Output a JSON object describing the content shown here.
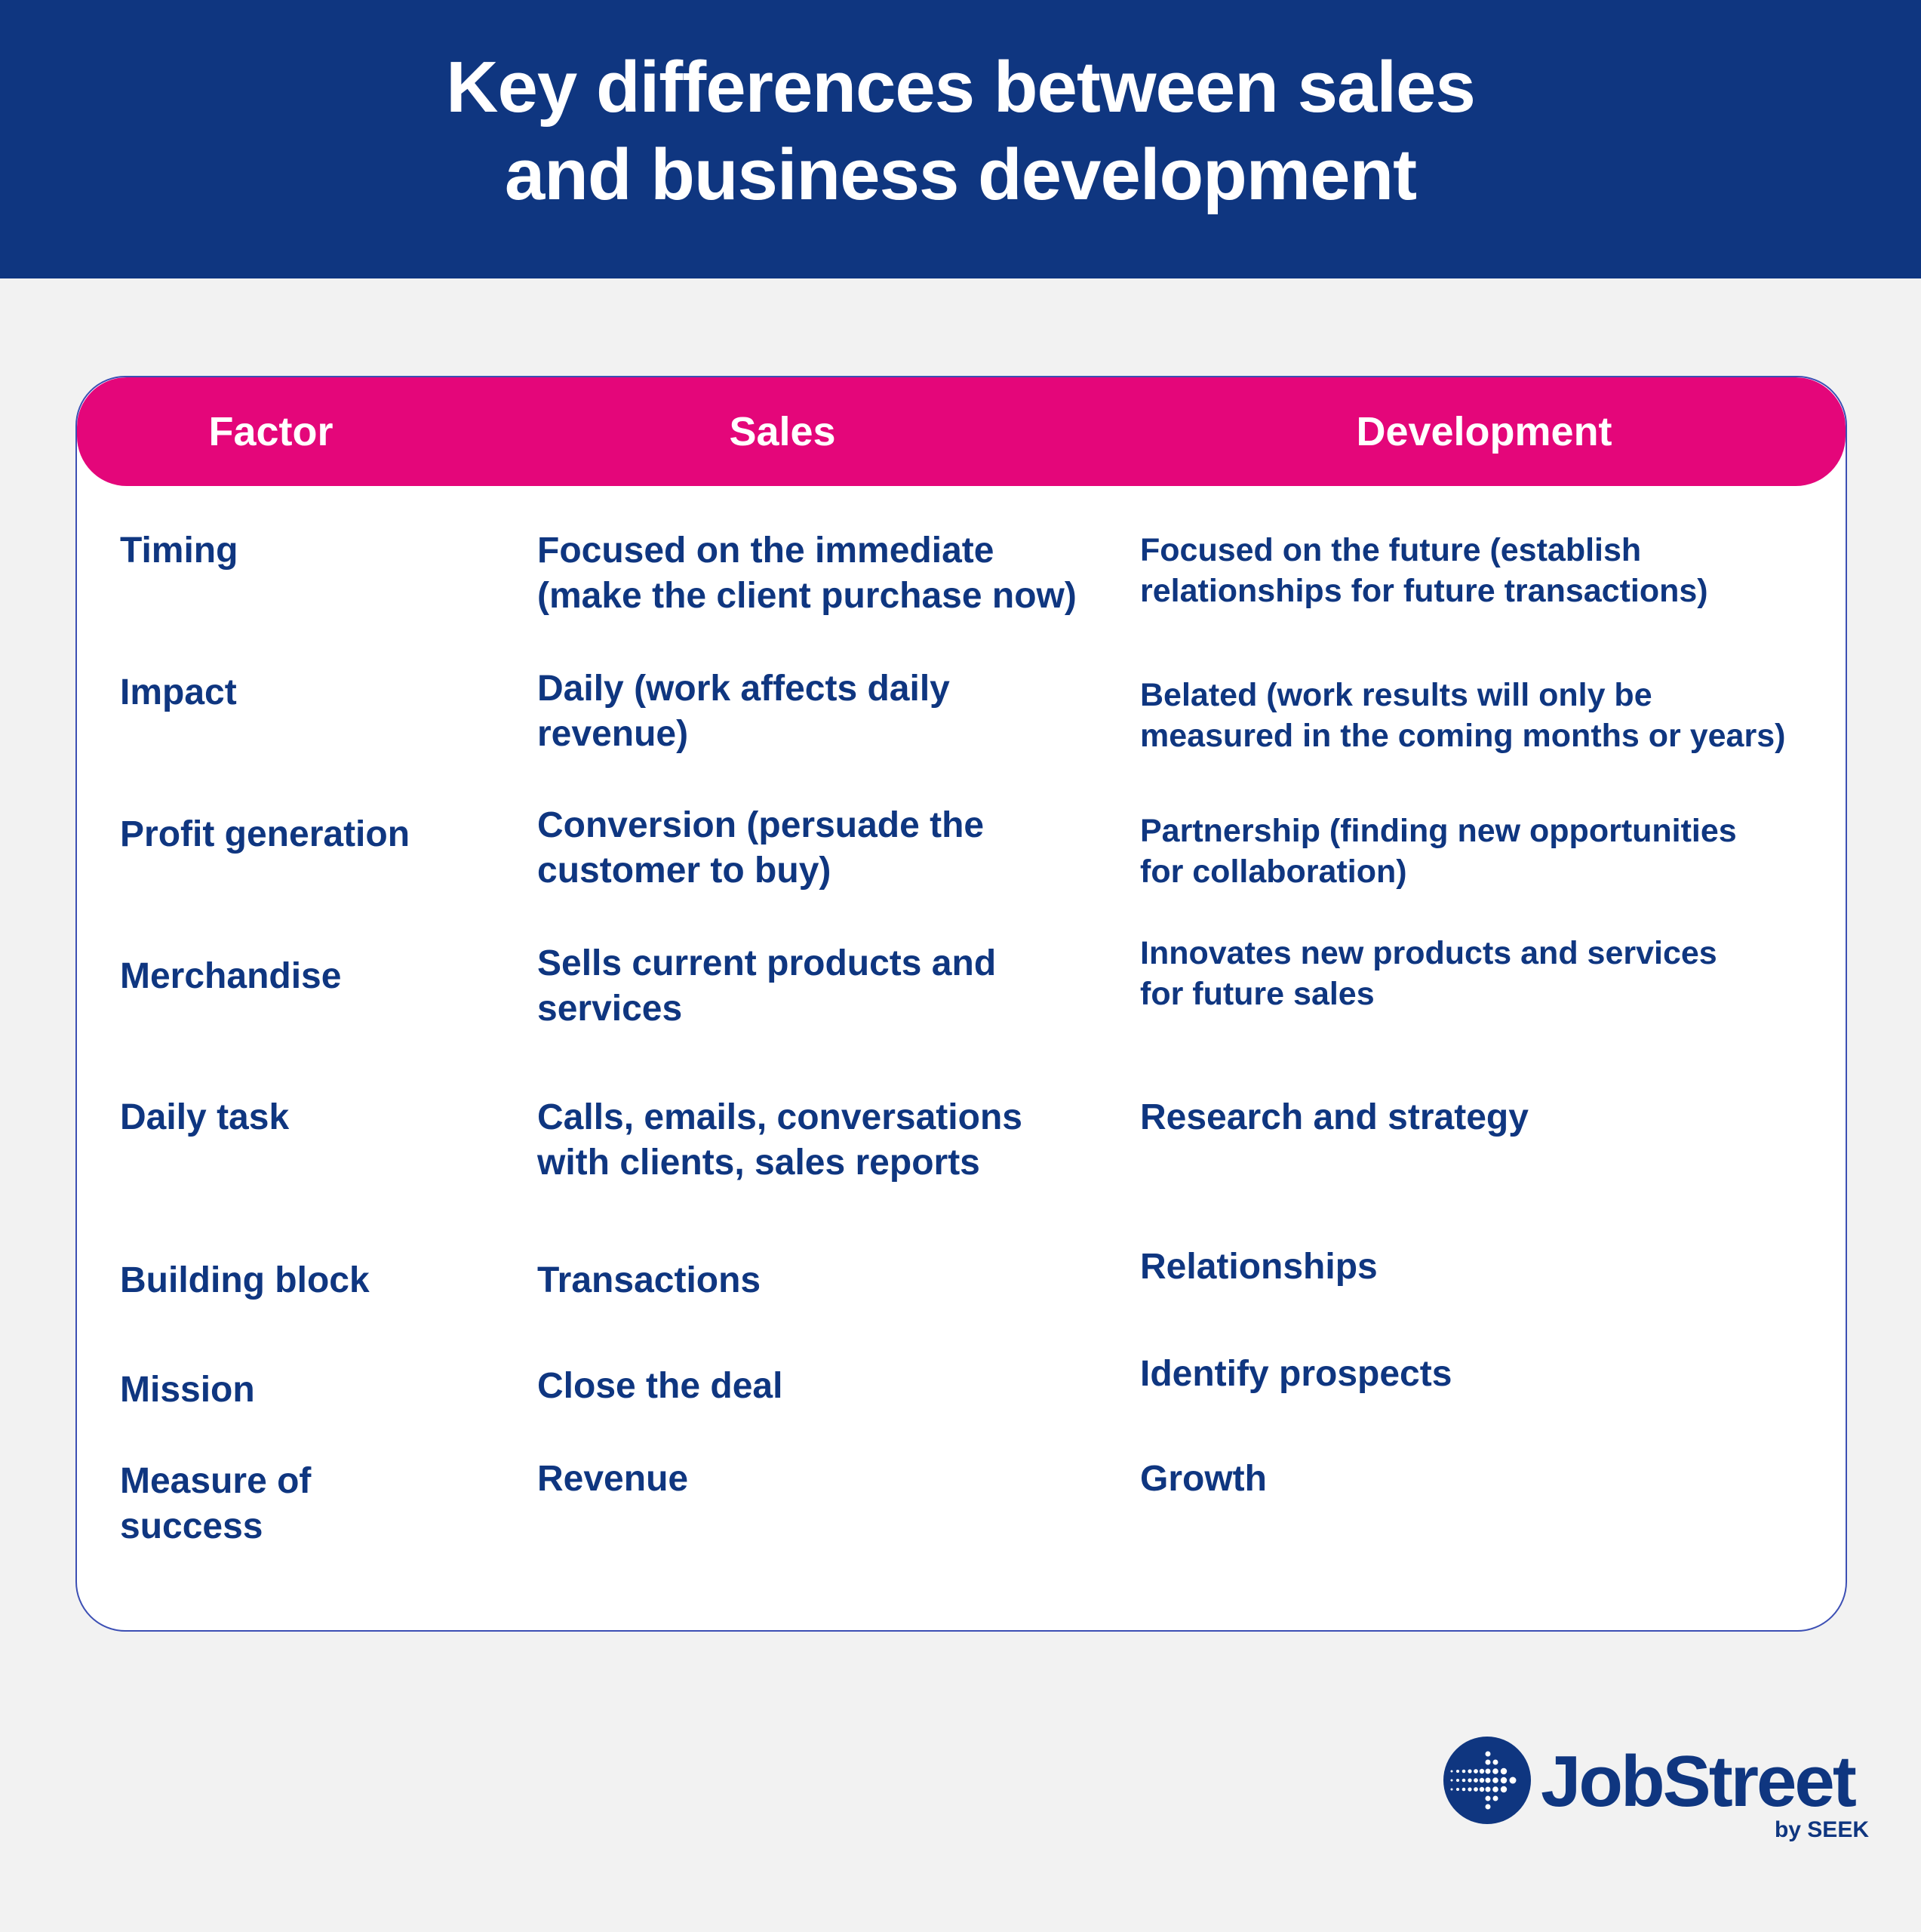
{
  "header": {
    "title_line1": "Key differences between sales",
    "title_line2": "and business development"
  },
  "table": {
    "columns": [
      "Factor",
      "Sales",
      "Development"
    ],
    "rows": [
      {
        "factor": "Timing",
        "sales": "Focused on the immediate\n(make the client purchase now)",
        "development": "Focused on the future (establish\nrelationships for future transactions)"
      },
      {
        "factor": "Impact",
        "sales": "Daily (work affects daily\nrevenue)",
        "development": "Belated (work results will only be\nmeasured in the coming months or years)"
      },
      {
        "factor": "Profit generation",
        "sales": "Conversion (persuade the\ncustomer to buy)",
        "development": "Partnership (finding new opportunities\nfor collaboration)"
      },
      {
        "factor": "Merchandise",
        "sales": "Sells current products and\nservices",
        "development": "Innovates new products and services\nfor future sales"
      },
      {
        "factor": "Daily task",
        "sales": "Calls, emails, conversations\nwith clients, sales reports",
        "development": "Research and strategy"
      },
      {
        "factor": "Building block",
        "sales": "Transactions",
        "development": "Relationships"
      },
      {
        "factor": "Mission",
        "sales": "Close the deal",
        "development": "Identify prospects"
      },
      {
        "factor": "Measure of\nsuccess",
        "sales": "Revenue",
        "development": "Growth"
      }
    ]
  },
  "logo": {
    "name": "JobStreet",
    "sub": "by SEEK",
    "icon": "dotted-arrow-circle-icon"
  },
  "colors": {
    "navy": "#0f3680",
    "pink": "#e4067a",
    "background": "#f2f2f2"
  }
}
